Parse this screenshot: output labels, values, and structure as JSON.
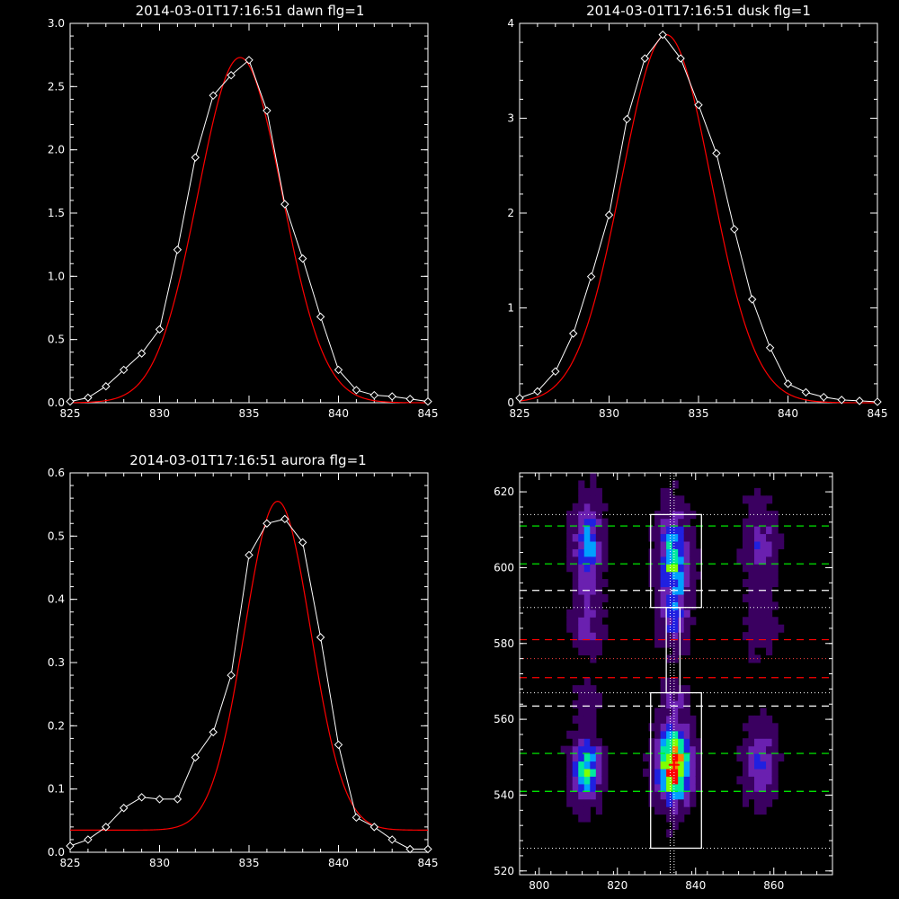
{
  "chart_data": [
    {
      "type": "line",
      "title": "2014-03-01T17:16:51 dawn flg=1",
      "xlabel": "",
      "ylabel": "",
      "xlim": [
        825,
        845
      ],
      "ylim": [
        0,
        3.0
      ],
      "xticks": [
        825,
        830,
        835,
        840,
        845
      ],
      "xtick_labels": [
        "825",
        "830",
        "835",
        "840",
        "845"
      ],
      "yticks": [
        0,
        0.5,
        1.0,
        1.5,
        2.0,
        2.5,
        3.0
      ],
      "ytick_labels": [
        "0.0",
        "0.5",
        "1.0",
        "1.5",
        "2.0",
        "2.5",
        "3.0"
      ],
      "grid": false,
      "colors": {
        "data": "#ffffff",
        "fit": "#ff0000"
      },
      "series": [
        {
          "style": "line-diamond",
          "x": [
            825,
            826,
            827,
            828,
            829,
            830,
            831,
            832,
            833,
            834,
            835,
            836,
            837,
            838,
            839,
            840,
            841,
            842,
            843,
            844,
            845
          ],
          "values": [
            0.01,
            0.04,
            0.13,
            0.26,
            0.39,
            0.58,
            1.21,
            1.94,
            2.43,
            2.59,
            2.71,
            2.31,
            1.57,
            1.14,
            0.68,
            0.26,
            0.1,
            0.06,
            0.05,
            0.03,
            0.01
          ]
        },
        {
          "style": "gaussian",
          "amplitude": 2.73,
          "center": 834.5,
          "sigma": 2.35,
          "offset": 0.0
        }
      ]
    },
    {
      "type": "line",
      "title": "2014-03-01T17:16:51 dusk flg=1",
      "xlabel": "",
      "ylabel": "",
      "xlim": [
        825,
        845
      ],
      "ylim": [
        0,
        4
      ],
      "xticks": [
        825,
        830,
        835,
        840,
        845
      ],
      "xtick_labels": [
        "825",
        "830",
        "835",
        "840",
        "845"
      ],
      "yticks": [
        0,
        1,
        2,
        3,
        4
      ],
      "ytick_labels": [
        "0",
        "1",
        "2",
        "3",
        "4"
      ],
      "grid": false,
      "colors": {
        "data": "#ffffff",
        "fit": "#ff0000"
      },
      "series": [
        {
          "style": "line-diamond",
          "x": [
            825,
            826,
            827,
            828,
            829,
            830,
            831,
            832,
            833,
            834,
            835,
            836,
            837,
            838,
            839,
            840,
            841,
            842,
            843,
            844,
            845
          ],
          "values": [
            0.05,
            0.12,
            0.33,
            0.73,
            1.33,
            1.98,
            2.99,
            3.63,
            3.88,
            3.63,
            3.14,
            2.63,
            1.83,
            1.09,
            0.58,
            0.2,
            0.11,
            0.06,
            0.03,
            0.02,
            0.01
          ]
        },
        {
          "style": "gaussian",
          "amplitude": 3.88,
          "center": 833.2,
          "sigma": 2.5,
          "offset": 0.0
        }
      ]
    },
    {
      "type": "line",
      "title": "2014-03-01T17:16:51 aurora flg=1",
      "xlabel": "",
      "ylabel": "",
      "xlim": [
        825,
        845
      ],
      "ylim": [
        0,
        0.6
      ],
      "xticks": [
        825,
        830,
        835,
        840,
        845
      ],
      "xtick_labels": [
        "825",
        "830",
        "835",
        "840",
        "845"
      ],
      "yticks": [
        0,
        0.1,
        0.2,
        0.3,
        0.4,
        0.5,
        0.6
      ],
      "ytick_labels": [
        "0.0",
        "0.1",
        "0.2",
        "0.3",
        "0.4",
        "0.5",
        "0.6"
      ],
      "grid": false,
      "colors": {
        "data": "#ffffff",
        "fit": "#ff0000"
      },
      "series": [
        {
          "style": "line-diamond",
          "x": [
            825,
            826,
            827,
            828,
            829,
            830,
            831,
            832,
            833,
            834,
            835,
            836,
            837,
            838,
            839,
            840,
            841,
            842,
            843,
            844,
            845
          ],
          "values": [
            0.01,
            0.02,
            0.04,
            0.07,
            0.087,
            0.084,
            0.084,
            0.15,
            0.19,
            0.28,
            0.47,
            0.52,
            0.527,
            0.49,
            0.34,
            0.17,
            0.055,
            0.04,
            0.02,
            0.005,
            0.005
          ]
        },
        {
          "style": "gaussian",
          "amplitude": 0.52,
          "center": 836.6,
          "sigma": 1.85,
          "offset": 0.035
        }
      ]
    },
    {
      "type": "heatmap",
      "title": "",
      "xlabel": "",
      "ylabel": "",
      "xlim": [
        795,
        875
      ],
      "ylim": [
        519,
        625
      ],
      "xticks": [
        800,
        820,
        840,
        860
      ],
      "xtick_labels": [
        "800",
        "820",
        "840",
        "860"
      ],
      "yticks": [
        520,
        540,
        560,
        580,
        600,
        620
      ],
      "ytick_labels": [
        "520",
        "540",
        "560",
        "580",
        "600",
        "620"
      ],
      "colormap": [
        "#000000",
        "#3a0060",
        "#6a20b0",
        "#2020e0",
        "#00a0ff",
        "#00e8a0",
        "#80ff00",
        "#ffff00",
        "#ff8000",
        "#ff0000"
      ],
      "blobs": [
        {
          "x": 812.5,
          "y": 605,
          "sx": 2.3,
          "sy": 7.5,
          "amp": 0.42
        },
        {
          "x": 812.5,
          "y": 585,
          "sx": 2.3,
          "sy": 5.0,
          "amp": 0.22
        },
        {
          "x": 812,
          "y": 547,
          "sx": 2.3,
          "sy": 5.0,
          "amp": 0.62
        },
        {
          "x": 812.5,
          "y": 565,
          "sx": 2.0,
          "sy": 3.5,
          "amp": 0.12
        },
        {
          "x": 834.5,
          "y": 602,
          "sx": 2.5,
          "sy": 8.0,
          "amp": 0.55
        },
        {
          "x": 834.5,
          "y": 586,
          "sx": 2.3,
          "sy": 4.0,
          "amp": 0.25
        },
        {
          "x": 834.5,
          "y": 548,
          "sx": 2.7,
          "sy": 6.0,
          "amp": 1.0
        },
        {
          "x": 834.5,
          "y": 565,
          "sx": 2.2,
          "sy": 3.5,
          "amp": 0.15
        },
        {
          "x": 856.5,
          "y": 605,
          "sx": 2.5,
          "sy": 7.0,
          "amp": 0.2
        },
        {
          "x": 856.5,
          "y": 585,
          "sx": 2.5,
          "sy": 5.0,
          "amp": 0.12
        },
        {
          "x": 856.5,
          "y": 548,
          "sx": 2.5,
          "sy": 6.0,
          "amp": 0.28
        }
      ],
      "boxes": [
        {
          "x0": 828.5,
          "x1": 841.5,
          "y0": 589.5,
          "y1": 614,
          "color": "#ffffff"
        },
        {
          "x0": 828.5,
          "x1": 841.5,
          "y0": 526,
          "y1": 567,
          "color": "#ffffff"
        },
        {
          "x0": 832.5,
          "x1": 836.0,
          "y0": 567,
          "y1": 589.5,
          "color": "#ffffff"
        }
      ],
      "dashed_hlines": [
        {
          "y": 611,
          "color": "#00ff00"
        },
        {
          "y": 601,
          "color": "#00ff00"
        },
        {
          "y": 594,
          "color": "#ffffff"
        },
        {
          "y": 581,
          "color": "#ff0000"
        },
        {
          "y": 571,
          "color": "#ff0000"
        },
        {
          "y": 563.5,
          "color": "#ffffff"
        },
        {
          "y": 551,
          "color": "#00ff00"
        },
        {
          "y": 541,
          "color": "#00ff00"
        }
      ],
      "dotted_hlines": [
        {
          "y": 614,
          "color": "#ffffff"
        },
        {
          "y": 589.5,
          "color": "#ffffff"
        },
        {
          "y": 576,
          "color": "#ff4040"
        },
        {
          "y": 567,
          "color": "#ffffff"
        },
        {
          "y": 526,
          "color": "#ffffff"
        }
      ],
      "dotted_vlines": [
        {
          "x": 833.5,
          "color": "#ffffff"
        },
        {
          "x": 834.5,
          "color": "#ffffff"
        }
      ],
      "cross": {
        "x": 834.5,
        "y": 548,
        "color": "#ff0000"
      }
    }
  ]
}
